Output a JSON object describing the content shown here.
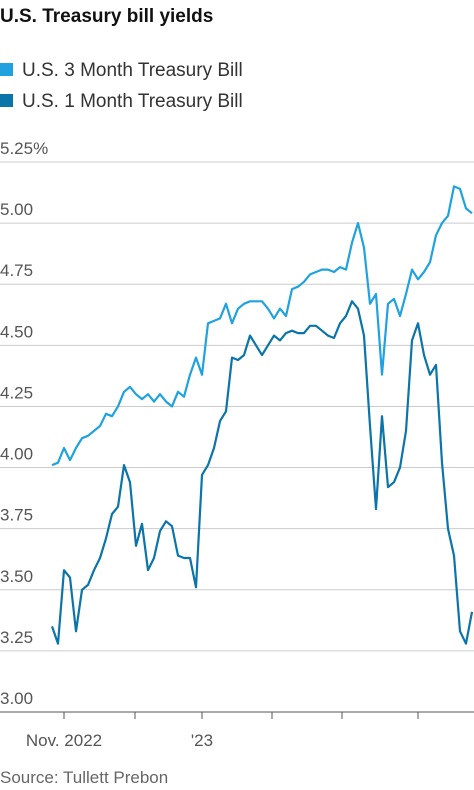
{
  "chart_data": {
    "type": "line",
    "title": "U.S. Treasury bill yields",
    "categories": [
      null,
      null,
      "Nov. 2022",
      null,
      null,
      null,
      null,
      null,
      null,
      null,
      null,
      null,
      null,
      null,
      null,
      null,
      null,
      null,
      null,
      null,
      null,
      null,
      null,
      null,
      null,
      "'23",
      null,
      null,
      null,
      null,
      null,
      null,
      null,
      null,
      null,
      null,
      null,
      null,
      null,
      null,
      null,
      null,
      null,
      null,
      null,
      null,
      null,
      null,
      null,
      null,
      null,
      null,
      null,
      null,
      null,
      null,
      null,
      null,
      null,
      null,
      null,
      null,
      null,
      null,
      null,
      null,
      null,
      null,
      null,
      null,
      null
    ],
    "series": [
      {
        "name": "U.S. 3 Month Treasury Bill",
        "color": "#1fa2de",
        "values": [
          4.01,
          4.02,
          4.08,
          4.03,
          4.08,
          4.12,
          4.13,
          4.15,
          4.17,
          4.22,
          4.21,
          4.25,
          4.31,
          4.33,
          4.3,
          4.28,
          4.3,
          4.27,
          4.3,
          4.27,
          4.25,
          4.31,
          4.29,
          4.38,
          4.45,
          4.38,
          4.59,
          4.6,
          4.61,
          4.67,
          4.59,
          4.65,
          4.67,
          4.68,
          4.68,
          4.68,
          4.65,
          4.61,
          4.65,
          4.62,
          4.73,
          4.74,
          4.76,
          4.79,
          4.8,
          4.81,
          4.81,
          4.8,
          4.82,
          4.81,
          4.92,
          5.0,
          4.9,
          4.67,
          4.71,
          4.38,
          4.67,
          4.69,
          4.62,
          4.71,
          4.81,
          4.77,
          4.8,
          4.84,
          4.95,
          5.0,
          5.03,
          5.15,
          5.14,
          5.06,
          5.04
        ]
      },
      {
        "name": "U.S. 1 Month Treasury Bill",
        "color": "#0b74a8",
        "values": [
          3.35,
          3.28,
          3.58,
          3.55,
          3.33,
          3.5,
          3.52,
          3.58,
          3.63,
          3.71,
          3.81,
          3.84,
          4.01,
          3.94,
          3.68,
          3.77,
          3.58,
          3.63,
          3.74,
          3.78,
          3.76,
          3.64,
          3.63,
          3.63,
          3.51,
          3.97,
          4.01,
          4.08,
          4.19,
          4.23,
          4.45,
          4.44,
          4.46,
          4.54,
          4.5,
          4.46,
          4.5,
          4.54,
          4.52,
          4.55,
          4.56,
          4.55,
          4.55,
          4.58,
          4.58,
          4.56,
          4.54,
          4.53,
          4.59,
          4.62,
          4.68,
          4.65,
          4.54,
          4.17,
          3.83,
          4.21,
          3.92,
          3.94,
          4.0,
          4.15,
          4.52,
          4.59,
          4.46,
          4.38,
          4.42,
          4.02,
          3.75,
          3.64,
          3.33,
          3.28,
          3.41
        ]
      }
    ],
    "ylim": [
      3,
      5.25
    ],
    "yticks": [
      3,
      3.25,
      3.5,
      3.75,
      4,
      4.25,
      4.5,
      4.75,
      5,
      5.25
    ],
    "ytick_labels": [
      "3.00",
      "3.25",
      "3.50",
      "3.75",
      "4.00",
      "4.25",
      "4.50",
      "4.75",
      "5.00",
      "5.25%"
    ],
    "grid": true,
    "source": "Source: Tullett Prebon"
  }
}
